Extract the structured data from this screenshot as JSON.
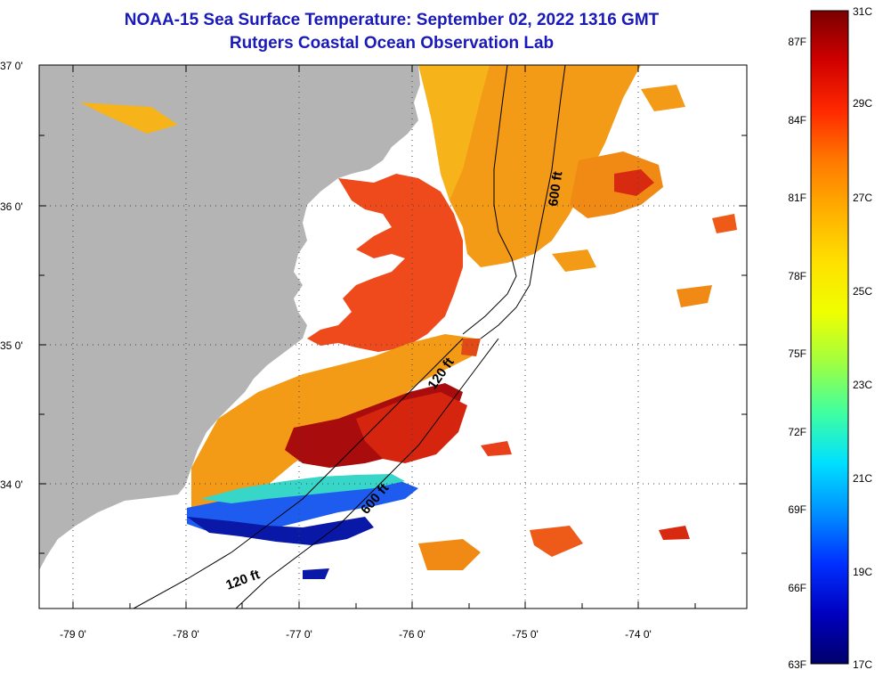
{
  "title": {
    "line1": "NOAA-15 Sea Surface Temperature:  September 02, 2022 1316 GMT",
    "line2": "Rutgers Coastal Ocean Observation Lab"
  },
  "map": {
    "lat_labels": [
      "37 0'",
      "36 0'",
      "35 0'",
      "34 0'"
    ],
    "lon_labels": [
      "-79 0'",
      "-78 0'",
      "-77 0'",
      "-76 0'",
      "-75 0'",
      "-74 0'"
    ],
    "contour_labels": [
      "600 ft",
      "120 ft",
      "600 ft",
      "120 ft"
    ],
    "colors": {
      "land": "#b4b4b4",
      "no_data": "#ffffff"
    }
  },
  "colorbar": {
    "celsius_labels": [
      "31C",
      "29C",
      "27C",
      "25C",
      "23C",
      "21C",
      "19C",
      "17C"
    ],
    "fahrenheit_labels": [
      "87F",
      "84F",
      "81F",
      "78F",
      "75F",
      "72F",
      "69F",
      "66F",
      "63F"
    ],
    "gradient": [
      "#7a0000",
      "#d00000",
      "#ff2a00",
      "#ff7a00",
      "#ffb000",
      "#ffe000",
      "#f0ff00",
      "#a0ff40",
      "#40ffa0",
      "#00e0ff",
      "#0090ff",
      "#0030ff",
      "#0000c0",
      "#00006a"
    ]
  }
}
